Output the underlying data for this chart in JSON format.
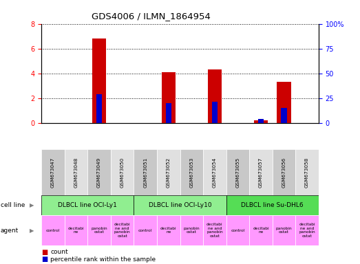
{
  "title": "GDS4006 / ILMN_1864954",
  "samples": [
    "GSM673047",
    "GSM673048",
    "GSM673049",
    "GSM673050",
    "GSM673051",
    "GSM673052",
    "GSM673053",
    "GSM673054",
    "GSM673055",
    "GSM673057",
    "GSM673056",
    "GSM673058"
  ],
  "count_values": [
    0,
    0,
    6.8,
    0,
    0,
    4.1,
    0,
    4.3,
    0,
    0.2,
    3.3,
    0
  ],
  "percentile_values": [
    0,
    0,
    29,
    0,
    0,
    20,
    0,
    21,
    0,
    4,
    15,
    0
  ],
  "ylim_left": [
    0,
    8
  ],
  "ylim_right": [
    0,
    100
  ],
  "yticks_left": [
    0,
    2,
    4,
    6,
    8
  ],
  "yticks_right": [
    0,
    25,
    50,
    75,
    100
  ],
  "ytick_labels_right": [
    "0",
    "25",
    "50",
    "75",
    "100%"
  ],
  "cell_lines": [
    {
      "label": "DLBCL line OCI-Ly1",
      "start": 0,
      "end": 4,
      "color": "#90EE90"
    },
    {
      "label": "DLBCL line OCI-Ly10",
      "start": 4,
      "end": 8,
      "color": "#90EE90"
    },
    {
      "label": "DLBCL line Su-DHL6",
      "start": 8,
      "end": 12,
      "color": "#55DD55"
    }
  ],
  "agents": [
    "control",
    "decitabi\nne",
    "panobin\nostat",
    "decitabi\nne and\npanobin\nostat",
    "control",
    "decitabi\nne",
    "panobin\nostat",
    "decitabi\nne and\npanobin\nostat",
    "control",
    "decitabi\nne",
    "panobin\nostat",
    "decitabi\nne and\npanobin\nostat"
  ],
  "agent_color": "#FF99FF",
  "bar_color": "#CC0000",
  "percentile_color": "#0000CC",
  "bar_width": 0.6,
  "pct_bar_width": 0.25,
  "tick_bg_color": "#C8C8C8",
  "tick_alt_color": "#E0E0E0",
  "legend_count": "count",
  "legend_pct": "percentile rank within the sample"
}
